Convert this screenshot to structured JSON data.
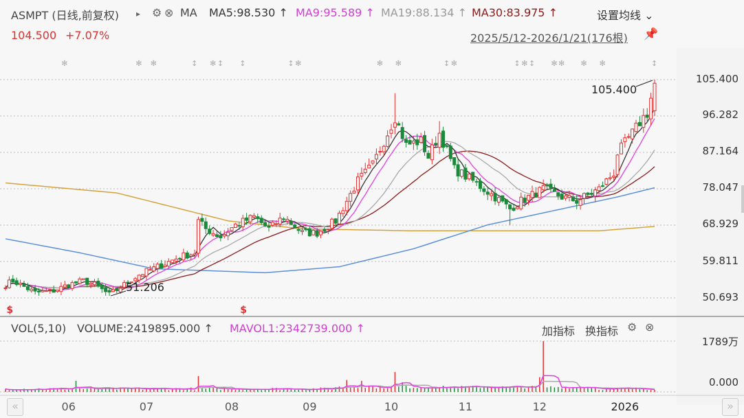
{
  "header": {
    "symbol": "ASMPT (日线,前复权)",
    "play_glyph": "▸",
    "ma_label": "MA",
    "ma5": "MA5:98.530 ↑",
    "ma9": "MA9:95.589 ↑",
    "ma19": "MA19:88.134 ↑",
    "ma30": "MA30:83.975 ↑",
    "settings_ma": "设置均线 ⌄",
    "price": "104.500",
    "change": "+7.07%",
    "range": "2025/5/12-2026/1/21(176根)"
  },
  "volume_header": {
    "vol": "VOL(5,10)",
    "volume": "VOLUME:2419895.000 ↑",
    "mavol": "MAVOL1:2342739.000 ↑",
    "add_indicator": "加指标",
    "switch_indicator": "换指标"
  },
  "colors": {
    "up": "#e03030",
    "down": "#1a8a3a",
    "ma5": "#333333",
    "ma9": "#e040e0",
    "ma19": "#a8a8a8",
    "ma30": "#8b1a1a",
    "ma_long1": "#5b8fd9",
    "ma_long2": "#d4a23c"
  },
  "chart_data": {
    "type": "candlestick",
    "bars": 176,
    "price_axis": {
      "ticks": [
        "105.400",
        "96.282",
        "87.164",
        "78.047",
        "68.929",
        "59.811",
        "50.693"
      ],
      "min": 50.693,
      "max": 105.4
    },
    "volume_axis": {
      "ticks": [
        "1789万",
        "0.000"
      ],
      "max": 1789
    },
    "x_ticks": [
      {
        "label": "06",
        "bar": 17
      },
      {
        "label": "07",
        "bar": 38
      },
      {
        "label": "08",
        "bar": 61
      },
      {
        "label": "09",
        "bar": 82
      },
      {
        "label": "10",
        "bar": 104
      },
      {
        "label": "11",
        "bar": 124
      },
      {
        "label": "12",
        "bar": 144
      },
      {
        "label": "2026",
        "bar": 167
      }
    ],
    "close_anchors": [
      [
        0,
        54
      ],
      [
        2,
        55
      ],
      [
        8,
        52
      ],
      [
        13,
        52.5
      ],
      [
        17,
        54
      ],
      [
        21,
        55
      ],
      [
        24,
        54
      ],
      [
        28,
        51.5
      ],
      [
        32,
        54
      ],
      [
        36,
        56.5
      ],
      [
        41,
        58.5
      ],
      [
        47,
        61
      ],
      [
        51,
        62
      ],
      [
        52,
        70
      ],
      [
        54,
        68
      ],
      [
        58,
        66
      ],
      [
        62,
        69
      ],
      [
        67,
        71
      ],
      [
        71,
        68
      ],
      [
        75,
        71
      ],
      [
        80,
        67
      ],
      [
        84,
        67
      ],
      [
        89,
        70
      ],
      [
        92,
        75
      ],
      [
        95,
        80
      ],
      [
        99,
        84
      ],
      [
        102,
        90
      ],
      [
        105,
        96
      ],
      [
        108,
        89
      ],
      [
        112,
        90
      ],
      [
        114,
        86
      ],
      [
        117,
        92
      ],
      [
        121,
        83
      ],
      [
        126,
        80
      ],
      [
        132,
        76
      ],
      [
        136,
        73
      ],
      [
        139,
        75
      ],
      [
        145,
        78
      ],
      [
        150,
        76
      ],
      [
        154,
        75
      ],
      [
        160,
        78
      ],
      [
        164,
        82
      ],
      [
        165,
        87
      ],
      [
        169,
        92
      ],
      [
        172,
        96
      ],
      [
        173,
        97
      ],
      [
        175,
        104.5
      ]
    ],
    "ma_long1_anchors": [
      [
        0,
        65.5
      ],
      [
        20,
        62
      ],
      [
        40,
        58
      ],
      [
        70,
        57
      ],
      [
        90,
        58.5
      ],
      [
        110,
        63
      ],
      [
        130,
        69
      ],
      [
        150,
        73
      ],
      [
        165,
        76
      ],
      [
        175,
        78.3
      ]
    ],
    "ma_long2_anchors": [
      [
        0,
        79.5
      ],
      [
        30,
        77
      ],
      [
        60,
        70
      ],
      [
        80,
        68
      ],
      [
        110,
        67.5
      ],
      [
        160,
        67.5
      ],
      [
        175,
        68.6
      ]
    ],
    "volume_spikes": [
      [
        19,
        390,
        "down"
      ],
      [
        52,
        560,
        "up"
      ],
      [
        92,
        420,
        "up"
      ],
      [
        96,
        390,
        "up"
      ],
      [
        105,
        700,
        "up"
      ],
      [
        145,
        1789,
        "up"
      ],
      [
        107,
        340,
        "down"
      ],
      [
        144,
        520,
        "up"
      ]
    ],
    "annotations": [
      {
        "label": "105.400",
        "bar": 175
      },
      {
        "label": "51.206",
        "bar": 28
      }
    ],
    "events": [
      {
        "bar": 16,
        "glyph": "✻"
      },
      {
        "bar": 36,
        "glyph": "✻"
      },
      {
        "bar": 40,
        "glyph": "✻"
      },
      {
        "bar": 51,
        "glyph": "↕"
      },
      {
        "bar": 56,
        "glyph": "✻"
      },
      {
        "bar": 58,
        "glyph": "↕"
      },
      {
        "bar": 64,
        "glyph": "↕"
      },
      {
        "bar": 77,
        "glyph": "↕"
      },
      {
        "bar": 79,
        "glyph": "✻"
      },
      {
        "bar": 101,
        "glyph": "✻"
      },
      {
        "bar": 106,
        "glyph": "✻"
      },
      {
        "bar": 119,
        "glyph": "↕"
      },
      {
        "bar": 121,
        "glyph": "✻"
      },
      {
        "bar": 138,
        "glyph": "↕"
      },
      {
        "bar": 140,
        "glyph": "✻"
      },
      {
        "bar": 142,
        "glyph": "↕"
      },
      {
        "bar": 148,
        "glyph": "✻"
      },
      {
        "bar": 150,
        "glyph": "✻"
      },
      {
        "bar": 156,
        "glyph": "✻"
      },
      {
        "bar": 161,
        "glyph": "✻"
      },
      {
        "bar": 175,
        "glyph": "↕"
      }
    ],
    "signals": [
      {
        "bar": 1,
        "glyph": "$"
      },
      {
        "bar": 64,
        "glyph": "$"
      }
    ]
  }
}
